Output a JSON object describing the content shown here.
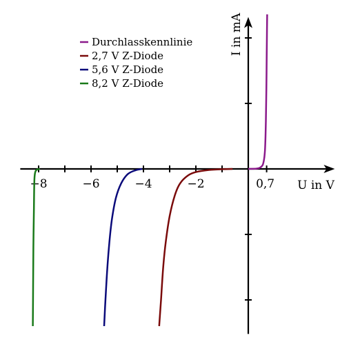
{
  "chart_data": {
    "type": "line",
    "xlabel": "U in V",
    "ylabel": "I in mA",
    "xlim": [
      -8.7,
      3.3
    ],
    "ylim": [
      -6.3,
      5.8
    ],
    "grid": false,
    "legend_position": "top-left",
    "x_tick_labels": [
      {
        "value": -8,
        "label": "−8"
      },
      {
        "value": -6,
        "label": "−6"
      },
      {
        "value": -4,
        "label": "−4"
      },
      {
        "value": -2,
        "label": "−2"
      },
      {
        "value": 0.7,
        "label": "0,7"
      }
    ],
    "x_ticks": [
      -8,
      -7,
      -6,
      -5,
      -4,
      -3,
      -2,
      -1,
      0.7
    ],
    "y_ticks": [
      -5,
      -2.5,
      2.5,
      5
    ],
    "series": [
      {
        "name": "Durchlasskennlinie",
        "color": "#8b1a8b",
        "points": [
          [
            0,
            0
          ],
          [
            0.3,
            0.01
          ],
          [
            0.45,
            0.05
          ],
          [
            0.55,
            0.15
          ],
          [
            0.6,
            0.35
          ],
          [
            0.63,
            0.6
          ],
          [
            0.65,
            1.0
          ],
          [
            0.67,
            1.8
          ],
          [
            0.69,
            3.0
          ],
          [
            0.7,
            4.0
          ],
          [
            0.71,
            5.0
          ],
          [
            0.72,
            5.9
          ]
        ]
      },
      {
        "name": "2,7 V Z-Diode",
        "color": "#7a0a0a",
        "points": [
          [
            -0.6,
            0
          ],
          [
            -1.0,
            -0.01
          ],
          [
            -1.5,
            -0.04
          ],
          [
            -2.0,
            -0.12
          ],
          [
            -2.3,
            -0.25
          ],
          [
            -2.6,
            -0.55
          ],
          [
            -2.8,
            -1.0
          ],
          [
            -3.0,
            -1.8
          ],
          [
            -3.15,
            -2.8
          ],
          [
            -3.25,
            -3.8
          ],
          [
            -3.33,
            -5.0
          ],
          [
            -3.4,
            -6.0
          ]
        ]
      },
      {
        "name": "5,6 V Z-Diode",
        "color": "#0a0a7a",
        "points": [
          [
            -4.05,
            0
          ],
          [
            -4.3,
            -0.05
          ],
          [
            -4.6,
            -0.2
          ],
          [
            -4.85,
            -0.55
          ],
          [
            -5.05,
            -1.1
          ],
          [
            -5.2,
            -1.9
          ],
          [
            -5.3,
            -2.8
          ],
          [
            -5.38,
            -3.8
          ],
          [
            -5.45,
            -5.0
          ],
          [
            -5.5,
            -6.0
          ]
        ]
      },
      {
        "name": "8,2 V Z-Diode",
        "color": "#1a7a1a",
        "points": [
          [
            -7.95,
            0
          ],
          [
            -8.05,
            -0.02
          ],
          [
            -8.12,
            -0.1
          ],
          [
            -8.16,
            -0.4
          ],
          [
            -8.18,
            -1.5
          ],
          [
            -8.2,
            -3.0
          ],
          [
            -8.21,
            -4.5
          ],
          [
            -8.22,
            -6.0
          ]
        ]
      }
    ]
  }
}
